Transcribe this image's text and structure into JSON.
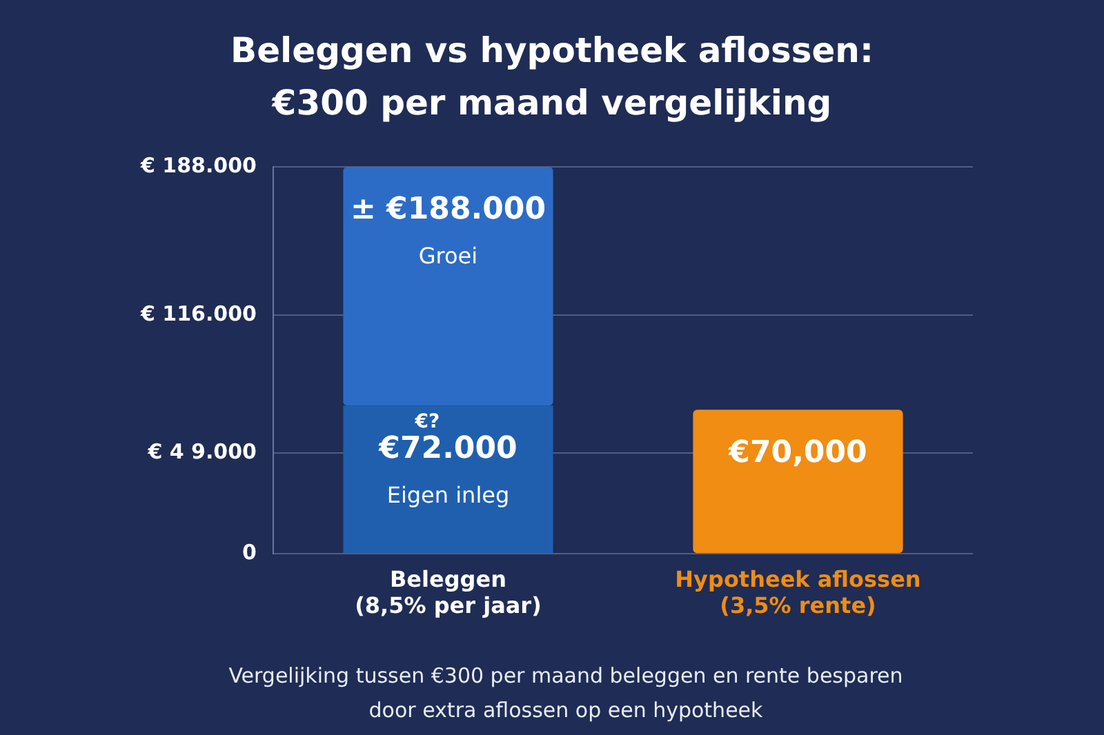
{
  "chart_data": {
    "type": "bar",
    "title": "Beleggen vs hypotheek aflossen:\n€300 per maand vergelijking",
    "categories": [
      "Beleggen\n(8,5% per jaar)",
      "Hypotheek aflossen\n(3,5% rente)"
    ],
    "stacked": true,
    "series": [
      {
        "name": "Eigen inleg",
        "color": "#1f5fae",
        "values": [
          72000,
          null
        ],
        "value_labels": [
          "€72.000",
          null
        ]
      },
      {
        "name": "Groei",
        "color": "#2c6cc6",
        "values": [
          116000,
          null
        ]
      },
      {
        "color": "#f08d12",
        "values": [
          null,
          70000
        ]
      }
    ],
    "totals": [
      "± €188.000",
      null
    ],
    "ylim": [
      0,
      188000
    ],
    "yticks": [
      0,
      {
        "value": 49000,
        "label": "€ 4 9.000"
      },
      {
        "value": 116000,
        "label": "€ 116.000"
      },
      {
        "value": 188000,
        "label": "€ 188.000"
      }
    ],
    "grid": "y",
    "legend": false,
    "annotations": [
      {
        "text": "€?",
        "x": "Beleggen\n(8,5% per jaar)",
        "y": 72000
      },
      {
        "text": "€70,000",
        "x": "Hypotheek aflossen\n(3,5% rente)",
        "y": 70000
      },
      "Vergelijking tussen €300 per maand beleggen en rente besparen door extra aflossen op een hypotheek"
    ]
  }
}
